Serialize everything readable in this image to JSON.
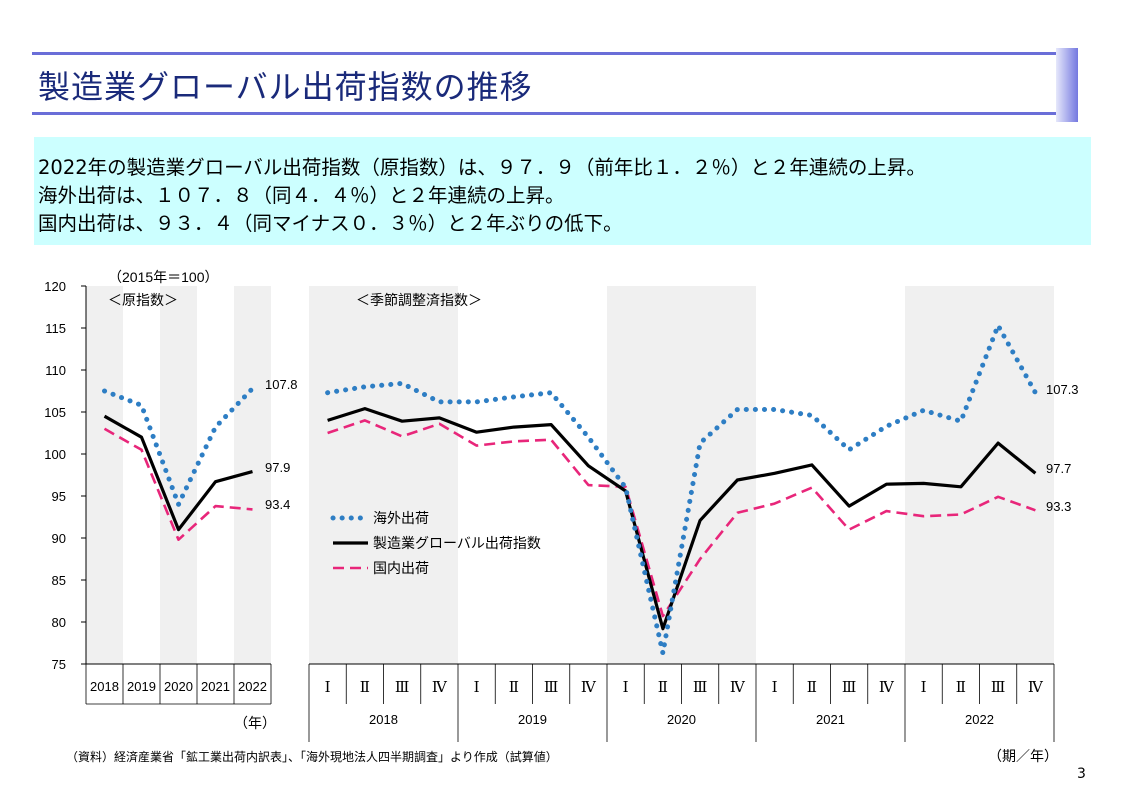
{
  "slide": {
    "title": "製造業グローバル出荷指数の推移",
    "summary": [
      "2022年の製造業グローバル出荷指数（原指数）は、９７．９（前年比１．２％）と２年連続の上昇。",
      "海外出荷は、１０７．８（同４．４％）と２年連続の上昇。",
      "国内出荷は、９３．４（同マイナス０．３％）と２年ぶりの低下。"
    ],
    "source_note": "（資料）経済産業省「鉱工業出荷内訳表」、「海外現地法人四半期調査」より作成（試算値）",
    "period_unit": "（期／年）",
    "page_number": "3"
  },
  "chart_data": {
    "type": "line",
    "base_note": "（2015年＝100）",
    "ylim": [
      75,
      120
    ],
    "yticks": [
      75,
      80,
      85,
      90,
      95,
      100,
      105,
      110,
      115,
      120
    ],
    "annual": {
      "label": "＜原指数＞",
      "categories": [
        "2018",
        "2019",
        "2020",
        "2021",
        "2022"
      ],
      "unit_label": "（年）",
      "series": [
        {
          "name": "海外出荷",
          "values": [
            107.5,
            105.8,
            94.0,
            103.2,
            107.8
          ]
        },
        {
          "name": "製造業グローバル出荷指数",
          "values": [
            104.5,
            102.0,
            91.0,
            96.7,
            97.9
          ]
        },
        {
          "name": "国内出荷",
          "values": [
            103.0,
            100.5,
            89.8,
            93.8,
            93.4
          ]
        }
      ],
      "end_labels": [
        "107.8",
        "97.9",
        "93.4"
      ]
    },
    "quarterly": {
      "label": "＜季節調整済指数＞",
      "quarter_labels": [
        "Ⅰ",
        "Ⅱ",
        "Ⅲ",
        "Ⅳ"
      ],
      "years": [
        "2018",
        "2019",
        "2020",
        "2021",
        "2022"
      ],
      "series": [
        {
          "name": "海外出荷",
          "values": [
            107.3,
            108.0,
            108.4,
            106.2,
            106.2,
            106.8,
            107.3,
            102.0,
            96.0,
            76.3,
            101.3,
            105.3,
            105.3,
            104.6,
            100.5,
            103.3,
            105.2,
            103.9,
            115.3,
            107.3
          ]
        },
        {
          "name": "製造業グローバル出荷指数",
          "values": [
            104.0,
            105.4,
            103.9,
            104.3,
            102.6,
            103.2,
            103.5,
            98.6,
            95.6,
            79.2,
            92.1,
            96.9,
            97.7,
            98.7,
            93.8,
            96.4,
            96.5,
            96.1,
            101.3,
            97.7
          ]
        },
        {
          "name": "国内出荷",
          "values": [
            102.5,
            104.0,
            102.1,
            103.6,
            101.0,
            101.5,
            101.7,
            96.3,
            96.1,
            80.7,
            87.5,
            93.0,
            94.1,
            96.0,
            91.0,
            93.2,
            92.6,
            92.8,
            94.9,
            93.3
          ]
        }
      ],
      "end_labels": [
        "107.3",
        "97.7",
        "93.3"
      ]
    },
    "legend": [
      "海外出荷",
      "製造業グローバル出荷指数",
      "国内出荷"
    ],
    "colors": {
      "overseas": "#2e7ec4",
      "global": "#000000",
      "domestic": "#e8267a",
      "band": "#f0f0f0"
    }
  }
}
